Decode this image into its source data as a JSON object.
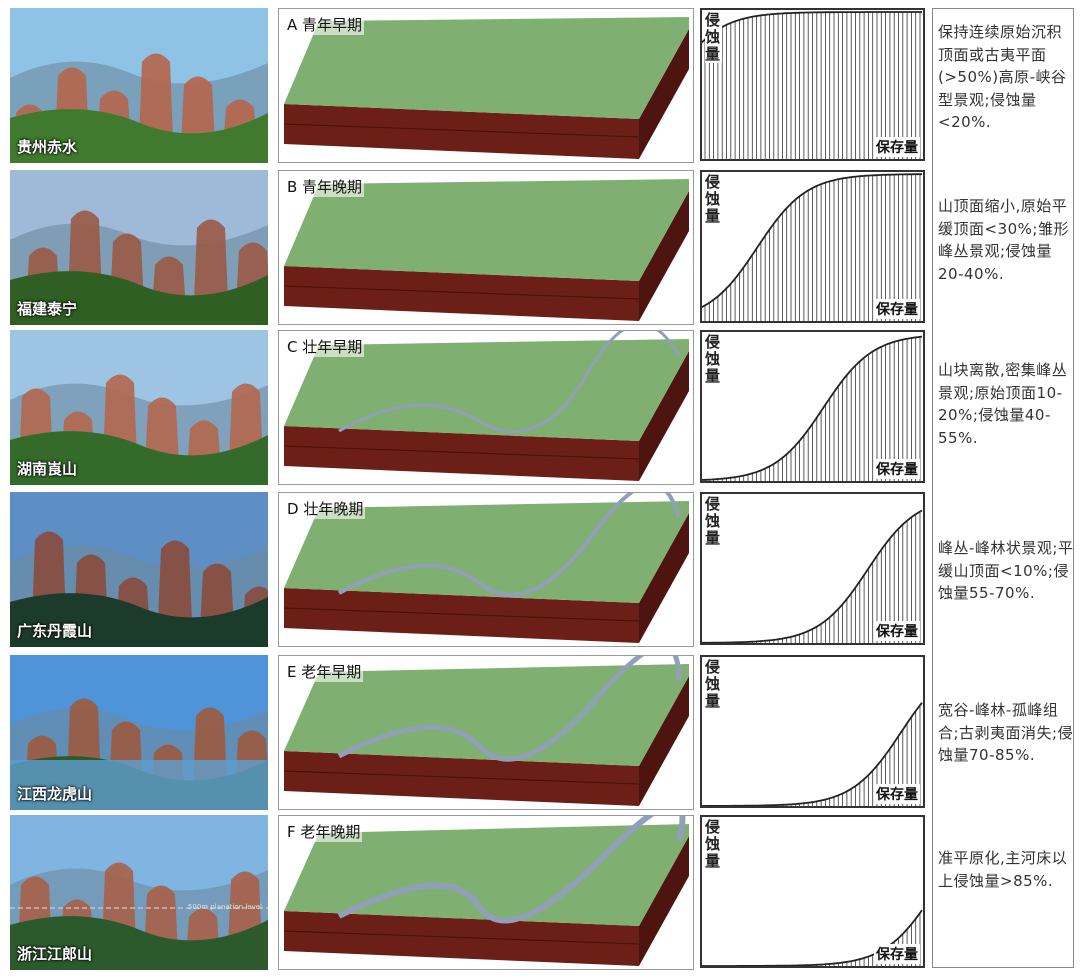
{
  "curve_axes": {
    "y_label": "侵蚀量",
    "x_label": "保存量"
  },
  "rows": [
    {
      "photo_label": "贵州赤水",
      "stage": "A 青年早期",
      "description": "保持连续原始沉积顶面或古夷平面(>50%)高原-峡谷型景观;侵蚀量<20%.",
      "sky": "#8fc3e6",
      "rock": "#b5654a",
      "veg": "#3f7a2e"
    },
    {
      "photo_label": "福建泰宁",
      "stage": "B 青年晚期",
      "description": "山顶面缩小,原始平缓顶面<30%;雏形峰丛景观;侵蚀量20-40%.",
      "sky": "#9fb9d8",
      "rock": "#9a5a45",
      "veg": "#2f5f22"
    },
    {
      "photo_label": "湖南崀山",
      "stage": "C 壮年早期",
      "description": "山块离散,密集峰丛景观;原始顶面10-20%;侵蚀量40-55%.",
      "sky": "#9ec4e4",
      "rock": "#b2674f",
      "veg": "#356b2a"
    },
    {
      "photo_label": "广东丹霞山",
      "stage": "D 壮年晚期",
      "description": "峰丛-峰林状景观;平缓山顶面<10%;侵蚀量55-70%.",
      "sky": "#5d8fc4",
      "rock": "#8a4a3c",
      "veg": "#1d3b2a"
    },
    {
      "photo_label": "江西龙虎山",
      "stage": "E 老年早期",
      "description": "宽谷-峰林-孤峰组合;古剥夷面消失;侵蚀量70-85%.",
      "sky": "#4f94d8",
      "rock": "#9c5a3f",
      "veg": "#2e5a2a"
    },
    {
      "photo_label": "浙江江郎山",
      "stage": "F 老年晚期",
      "description": "准平原化,主河床以上侵蚀量>85%.",
      "sky": "#7fb5e0",
      "rock": "#a8604a",
      "veg": "#2d5a2c",
      "annotation": "500m planation level"
    }
  ],
  "colors": {
    "block_side": "#6b1f17",
    "block_top": "#7fb072",
    "river": "#8fa0b8"
  }
}
